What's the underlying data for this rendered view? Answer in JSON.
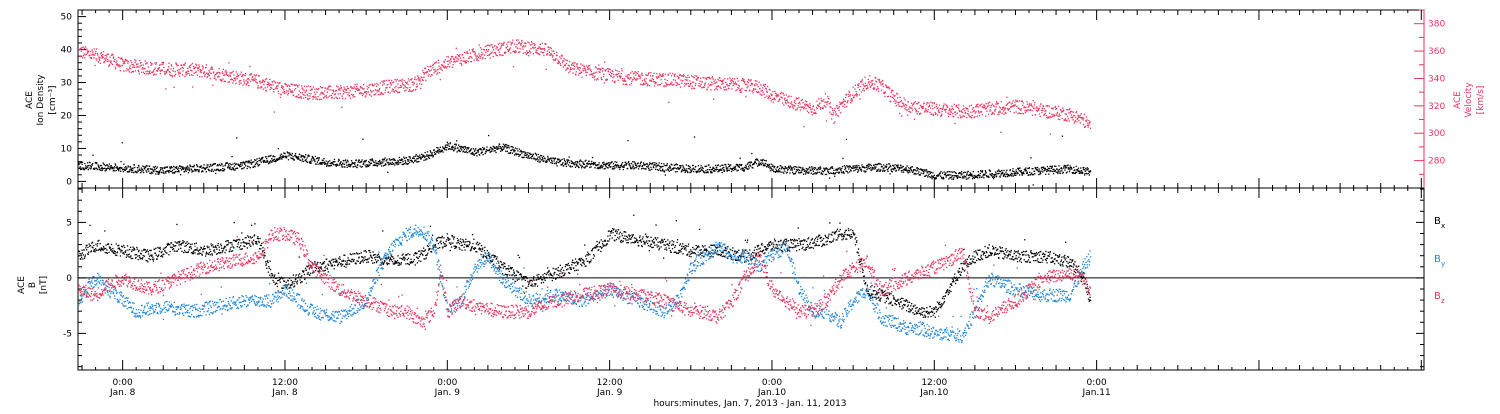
{
  "colors": {
    "black": "#000000",
    "red": "#e8365f",
    "blue": "#1f86d8"
  },
  "xaxis": {
    "title": "hours:minutes, Jan. 7, 2013 - Jan. 11, 2013",
    "range_hours": [
      -3.3,
      96.2
    ],
    "ticks": [
      {
        "h": 0,
        "time": "0:00",
        "date": "Jan. 8"
      },
      {
        "h": 12,
        "time": "12:00",
        "date": "Jan. 8"
      },
      {
        "h": 24,
        "time": "0:00",
        "date": "Jan. 9"
      },
      {
        "h": 36,
        "time": "12:00",
        "date": "Jan. 9"
      },
      {
        "h": 48,
        "time": "0:00",
        "date": "Jan.10"
      },
      {
        "h": 60,
        "time": "12:00",
        "date": "Jan.10"
      },
      {
        "h": 72,
        "time": "0:00",
        "date": "Jan.11"
      }
    ]
  },
  "chart_data": [
    {
      "type": "scatter",
      "panel": "top",
      "ylabel_left": [
        "ACE",
        "Ion Density",
        "[cm⁻³]"
      ],
      "ylabel_right": [
        "ACE",
        "Velocity",
        "[km/s]"
      ],
      "ylim_left": [
        -2,
        52
      ],
      "yticks_left": [
        "0",
        "10",
        "20",
        "30",
        "40",
        "50"
      ],
      "ylim_right": [
        260,
        390
      ],
      "yticks_right": [
        "280",
        "300",
        "320",
        "340",
        "360",
        "380"
      ],
      "series": [
        {
          "axis": "left",
          "color": "black",
          "x": [
            -3.3,
            -1,
            1,
            3,
            5,
            7,
            9,
            11,
            12,
            13,
            15,
            17,
            19,
            21,
            22.5,
            24,
            25,
            26,
            28,
            30,
            32,
            34,
            36,
            38,
            40,
            42,
            44,
            46,
            47.2,
            48,
            50,
            52,
            54,
            56,
            58,
            60,
            62,
            64,
            66,
            68,
            70,
            71.5
          ],
          "y": [
            5,
            4.5,
            4,
            3.5,
            4,
            4.5,
            5,
            7,
            8,
            7.5,
            6,
            5.5,
            6,
            6.5,
            8,
            11,
            10,
            9,
            10.5,
            8,
            6,
            5.5,
            5,
            5,
            4.5,
            4,
            4,
            4.5,
            6.5,
            4,
            3.5,
            3.5,
            4,
            4.5,
            4,
            2,
            2,
            2.5,
            3,
            3.5,
            4,
            3
          ]
        },
        {
          "axis": "right",
          "color": "red",
          "x": [
            -3.3,
            -1.5,
            0,
            2,
            4,
            6,
            8,
            10,
            11,
            12,
            14,
            16,
            18,
            20,
            21.5,
            22.5,
            23.5,
            25,
            27,
            29,
            31,
            32,
            33,
            35,
            37,
            39,
            41,
            43,
            45,
            47,
            48,
            49,
            50.5,
            51,
            52,
            52.5,
            53,
            54,
            55,
            56,
            57,
            58,
            59,
            60,
            62,
            64,
            66,
            68,
            70,
            71,
            71.5
          ],
          "y": [
            360,
            356,
            350,
            348,
            347,
            346,
            342,
            338,
            335,
            332,
            330,
            330,
            332,
            335,
            336,
            345,
            350,
            355,
            360,
            364,
            362,
            357,
            348,
            344,
            341,
            340,
            339,
            337,
            336,
            334,
            328,
            324,
            320,
            318,
            325,
            312,
            320,
            330,
            338,
            335,
            326,
            320,
            319,
            318,
            316,
            318,
            320,
            317,
            314,
            310,
            305
          ]
        }
      ]
    },
    {
      "type": "scatter",
      "panel": "bottom",
      "ylabel": [
        "ACE",
        "B",
        "[nT]"
      ],
      "ylim": [
        -8.3,
        8.1
      ],
      "yticks": [
        "-5",
        "0",
        "5"
      ],
      "series": [
        {
          "name": "B",
          "sub": "x",
          "color": "black",
          "x": [
            -3.3,
            -2,
            0,
            2,
            4,
            6,
            8,
            10,
            11,
            12,
            13,
            14,
            16,
            18,
            20,
            22,
            23,
            24,
            25,
            26,
            28,
            30,
            32,
            34,
            35,
            36,
            38,
            40,
            42,
            44,
            46,
            48,
            50,
            52,
            53,
            54,
            55,
            56,
            57,
            58,
            59,
            60,
            61,
            62,
            63,
            64,
            66,
            68,
            70,
            71,
            71.5
          ],
          "y": [
            2,
            3,
            2.5,
            2,
            3,
            2.5,
            3,
            3.5,
            0,
            -0.5,
            0,
            1,
            1.5,
            2,
            1.5,
            2,
            3,
            3.5,
            3,
            3,
            1,
            -0.5,
            0.5,
            1.5,
            2.5,
            4,
            3.5,
            3,
            2.5,
            2.5,
            2,
            3,
            3,
            3.5,
            4,
            4,
            -1,
            -1.5,
            -2,
            -2.5,
            -3,
            -3,
            -1,
            1,
            2,
            2.5,
            2,
            2,
            1.5,
            0,
            -2
          ]
        },
        {
          "name": "B",
          "sub": "y",
          "color": "blue",
          "x": [
            -3.3,
            -2,
            -1,
            0,
            1,
            3,
            5,
            7,
            9,
            11,
            12,
            13,
            14,
            16,
            18,
            19,
            20,
            21,
            22,
            23,
            23.5,
            24,
            25,
            26,
            27,
            28,
            30,
            32,
            34,
            36,
            38,
            40,
            41,
            42,
            44,
            45,
            46,
            47,
            48,
            49,
            50,
            51,
            52,
            53,
            54,
            55,
            56,
            57,
            58,
            59,
            60,
            61,
            62,
            63,
            64,
            66,
            68,
            70,
            71,
            71.5
          ],
          "y": [
            -2,
            0,
            -1,
            -2,
            -3,
            -2.5,
            -3,
            -2.5,
            -2,
            -2,
            -1,
            -2,
            -3,
            -3.5,
            -2,
            1,
            3,
            4,
            4.5,
            3,
            0,
            -3,
            -2,
            1,
            2,
            0,
            -2,
            -1.5,
            -2,
            -1,
            -2,
            -3,
            -2,
            1,
            3,
            2,
            2,
            1,
            2,
            3,
            -1,
            -3,
            -3,
            -4,
            -2,
            -1,
            -3.5,
            -4,
            -4.5,
            -4.5,
            -5,
            -5,
            -5.2,
            -3,
            0,
            -1,
            -1.5,
            -1.5,
            1,
            2
          ]
        },
        {
          "name": "B",
          "sub": "z",
          "color": "red",
          "x": [
            -3.3,
            -2,
            -1,
            0,
            2,
            4,
            6,
            8,
            10,
            11,
            12,
            13,
            14,
            16,
            18,
            20,
            21,
            22,
            23,
            23.5,
            24,
            25,
            26,
            28,
            30,
            32,
            34,
            36,
            38,
            40,
            42,
            43,
            44,
            45,
            46,
            47,
            48,
            49,
            50,
            51,
            52,
            53,
            54,
            55,
            56,
            57,
            58,
            59,
            60,
            61,
            62,
            63,
            64,
            66,
            68,
            70,
            71,
            71.5
          ],
          "y": [
            -1,
            -1.5,
            -0.5,
            0,
            -1,
            0,
            1,
            1.5,
            2,
            4,
            4,
            3.5,
            1,
            -1,
            -2,
            -3,
            -3,
            -4,
            -3,
            1,
            -3,
            -2,
            -2.5,
            -3,
            -3,
            -2,
            -1.5,
            -1,
            -1.5,
            -2,
            -3,
            -3,
            -3.5,
            -2,
            0,
            2,
            -1,
            -2,
            -3,
            -3,
            -2,
            0,
            1,
            1.5,
            -1,
            -0.5,
            0,
            0.5,
            1,
            1.5,
            2.5,
            -3,
            -3.5,
            -2,
            0,
            0.5,
            0,
            -1
          ]
        }
      ]
    }
  ]
}
